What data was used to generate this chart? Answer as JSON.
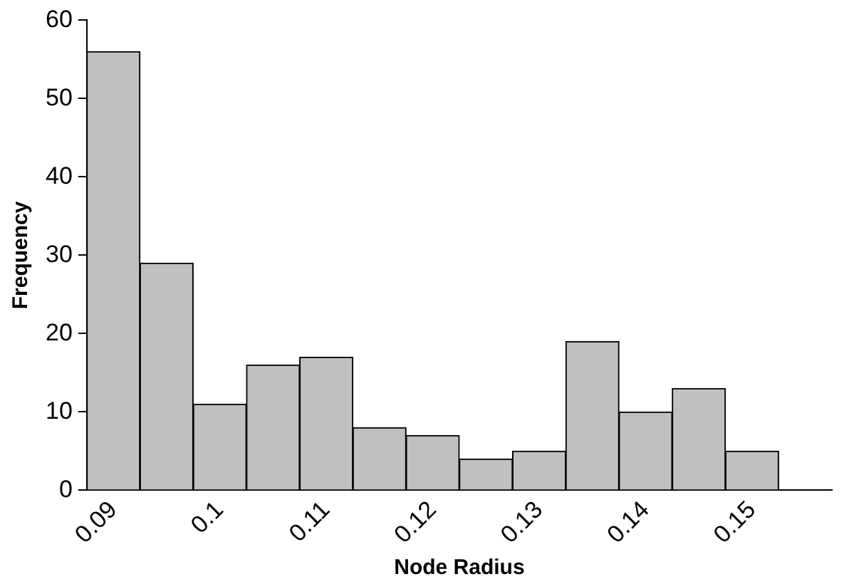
{
  "chart_data": {
    "type": "bar",
    "xlabel": "Node Radius",
    "ylabel": "Frequency",
    "categories": [
      "0.09",
      null,
      "0.1",
      null,
      "0.11",
      null,
      "0.12",
      null,
      "0.13",
      null,
      "0.14",
      null,
      "0.15",
      null
    ],
    "values": [
      56,
      29,
      11,
      16,
      17,
      8,
      7,
      4,
      5,
      19,
      10,
      13,
      5,
      null
    ],
    "color": "#c0c0c0",
    "ylim": [
      0,
      60
    ],
    "yticks": [
      0,
      10,
      20,
      30,
      40,
      50,
      60
    ],
    "grid": false,
    "legend": false
  }
}
